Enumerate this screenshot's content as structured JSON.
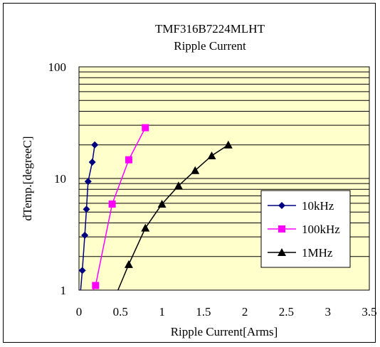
{
  "chart_data": {
    "type": "line",
    "title": "TMF316B7224MLHT",
    "subtitle": "Ripple Current",
    "xlabel": "Ripple Current[Arms]",
    "ylabel": "dTemp.[degreeC]",
    "xlim": [
      0,
      3.5
    ],
    "ylim": [
      1,
      100
    ],
    "yscale": "log",
    "x_ticks": [
      "0",
      "0.5",
      "1",
      "1.5",
      "2",
      "2.5",
      "3",
      "3.5"
    ],
    "y_ticks": [
      "1",
      "10",
      "100"
    ],
    "grid": true,
    "legend_position": "right",
    "series": [
      {
        "name": "10kHz",
        "color": "#000080",
        "marker": "diamond",
        "x": [
          0.04,
          0.07,
          0.09,
          0.11,
          0.16,
          0.19
        ],
        "y": [
          1.5,
          3.1,
          5.3,
          9.4,
          14,
          20
        ]
      },
      {
        "name": "100kHz",
        "color": "#ff00ff",
        "marker": "square",
        "x": [
          0.2,
          0.4,
          0.6,
          0.8
        ],
        "y": [
          1.1,
          5.9,
          14.7,
          28.5
        ]
      },
      {
        "name": "1MHz",
        "color": "#000000",
        "marker": "triangle",
        "x": [
          0.6,
          0.8,
          1.0,
          1.2,
          1.4,
          1.6,
          1.8
        ],
        "y": [
          1.7,
          3.6,
          5.9,
          8.6,
          11.8,
          16,
          20
        ]
      }
    ],
    "colors": {
      "plot_background": "#ffffcc",
      "grid": "#000000"
    }
  }
}
